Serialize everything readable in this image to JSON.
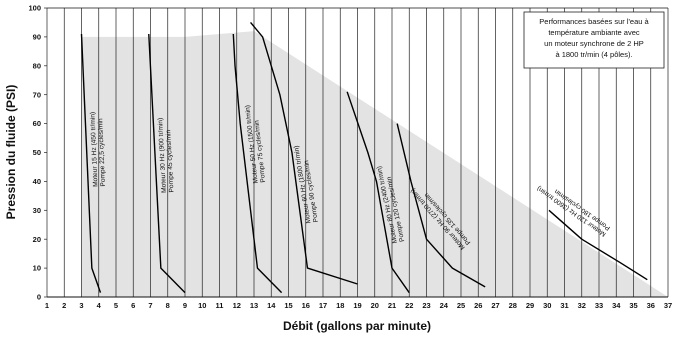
{
  "chart_data": {
    "type": "line",
    "xlabel": "Débit (gallons par minute)",
    "ylabel": "Pression du fluide (PSI)",
    "xlim": [
      1,
      37
    ],
    "ylim": [
      0,
      100
    ],
    "x_ticks": [
      1,
      2,
      3,
      4,
      5,
      6,
      7,
      8,
      9,
      10,
      11,
      12,
      13,
      14,
      15,
      16,
      17,
      18,
      19,
      20,
      21,
      22,
      23,
      24,
      25,
      26,
      27,
      28,
      29,
      30,
      31,
      32,
      33,
      34,
      35,
      36,
      37
    ],
    "y_ticks": [
      0,
      10,
      20,
      30,
      40,
      50,
      60,
      70,
      80,
      90,
      100
    ],
    "grid": "vertical",
    "note": {
      "lines": [
        "Performances basées sur l'eau à",
        "température ambiante avec",
        "un moteur synchrone de 2 HP",
        "à 1800 tr/min (4 pôles)."
      ]
    },
    "operating_region": [
      [
        3,
        0
      ],
      [
        3,
        90
      ],
      [
        9,
        90
      ],
      [
        13,
        92
      ],
      [
        37,
        0
      ]
    ],
    "series": [
      {
        "name": "Moteur 15 Hz (450 tr/min) / Pompe 22,5 cycles/min",
        "x": [
          3.0,
          3.6,
          4.1
        ],
        "y": [
          91,
          10,
          1.5
        ]
      },
      {
        "name": "Moteur 30 Hz (900 tr/min) / Pompe 45 cycles/min",
        "x": [
          6.9,
          7.6,
          9.0
        ],
        "y": [
          91,
          10,
          1.5
        ]
      },
      {
        "name": "Moteur 50 Hz (1500 tr/min) / Pompe 75 cycles/min",
        "x": [
          11.8,
          11.9,
          12.2,
          12.8,
          13.2,
          14.6
        ],
        "y": [
          91,
          80,
          60,
          30,
          10,
          1.5
        ]
      },
      {
        "name": "Moteur 60 Hz (1800 tr/min) / Pompe 90 cycles/min",
        "x": [
          12.8,
          13.5,
          14.5,
          15.2,
          16.1,
          19.0
        ],
        "y": [
          95,
          90,
          70,
          50,
          10,
          4.5
        ]
      },
      {
        "name": "Moteur 80 Hz (2400 tr/min) / Pompe 120 cycles/min",
        "x": [
          18.4,
          19.6,
          20.1,
          21.0,
          22.0
        ],
        "y": [
          71,
          50,
          40,
          10,
          1.5
        ]
      },
      {
        "name": "Moteur 90 Hz (2700 tr/min) / Pompe 135 cycles/min",
        "x": [
          21.3,
          22.1,
          23.0,
          24.5,
          26.4
        ],
        "y": [
          60,
          40,
          20,
          10,
          3.5
        ]
      },
      {
        "name": "Moteur 120 Hz (3600 tr/min) / Pompe 180 cycles/min",
        "x": [
          30.1,
          32.0,
          34.2,
          35.8
        ],
        "y": [
          30,
          20,
          12,
          6
        ]
      }
    ],
    "labels": [
      {
        "line1": "Moteur 15 Hz (450 tr/min)",
        "line2": "Pompe 22,5 cycles/min"
      },
      {
        "line1": "Moteur 30 Hz (900 tr/min)",
        "line2": "Pompe 45 cycles/min"
      },
      {
        "line1": "Moteur 50 Hz (1500 tr/min)",
        "line2": "Pompe 75 cycles/min"
      },
      {
        "line1": "Moteur 60 Hz (1800 tr/min)",
        "line2": "Pompe 90 cycles/min"
      },
      {
        "line1": "Moteur 80 Hz (2400 tr/min)",
        "line2": "Pompe 120 cycles/min"
      },
      {
        "line1": "Moteur 90 Hz (2700 tr/min)",
        "line2": "Pompe 135 cycles/min"
      },
      {
        "line1": "Moteur 120 Hz (3600 tr/min)",
        "line2": "Pompe 180 cycles/min"
      }
    ],
    "colors": {
      "region": "#e3e3e3",
      "curve": "#000000",
      "grid": "#222222",
      "note_box": "#ffffff"
    }
  }
}
